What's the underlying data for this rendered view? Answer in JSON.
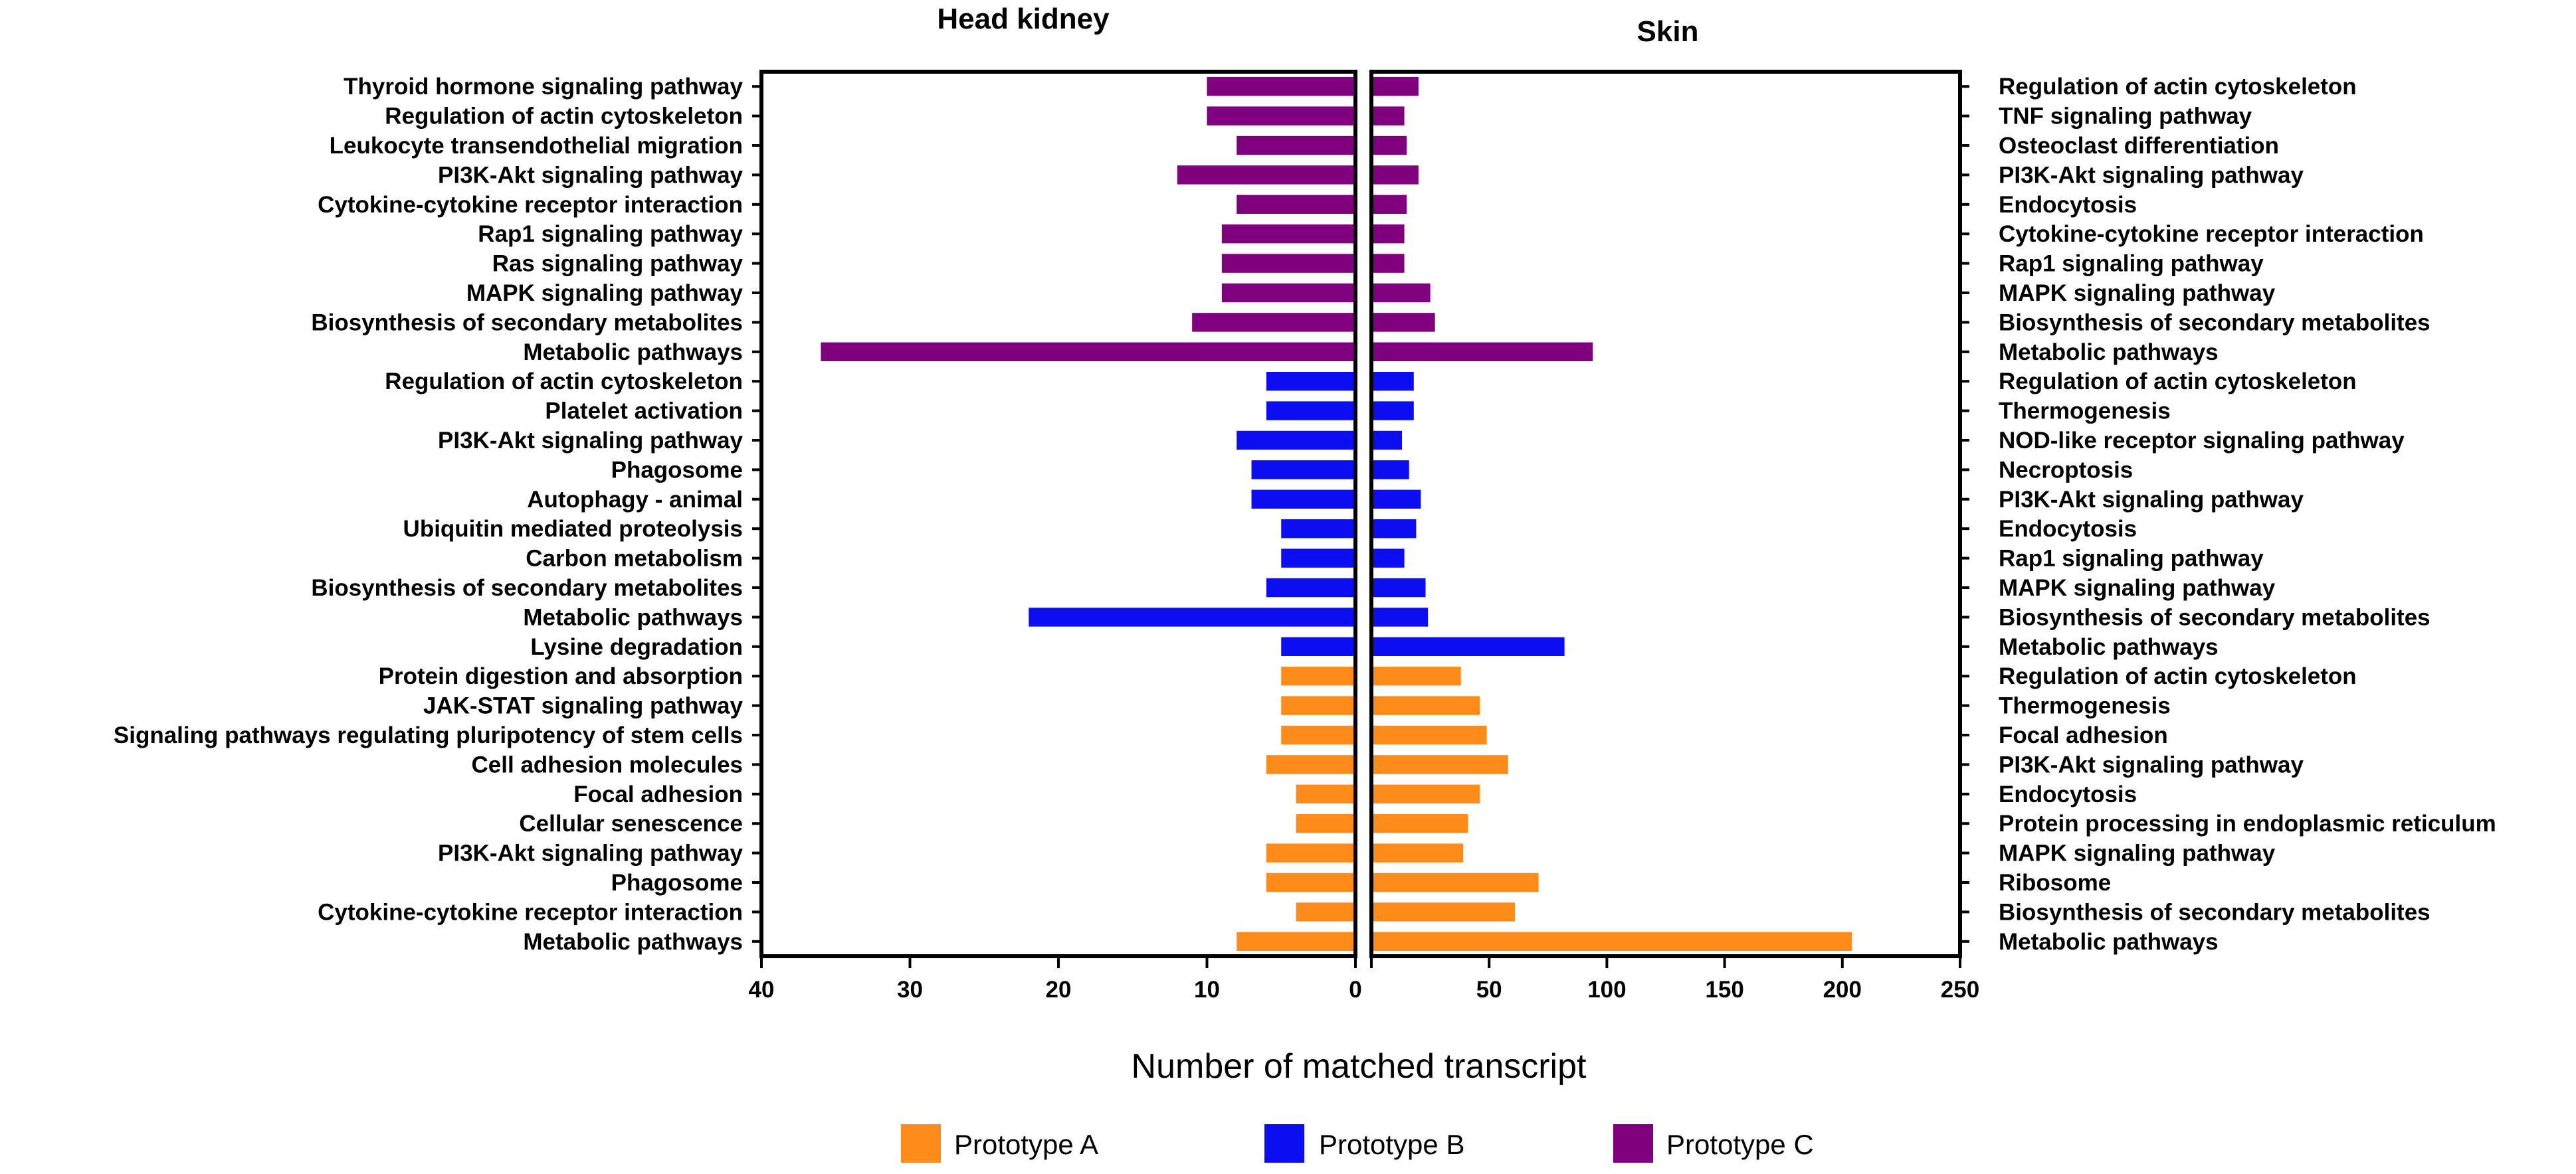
{
  "chart_data": {
    "type": "bar",
    "orientation": "horizontal",
    "xlabel": "Number of matched transcript",
    "colors": {
      "Prototype A": "#FF8C1A",
      "Prototype B": "#0D0DF2",
      "Prototype C": "#800080"
    },
    "legend": [
      {
        "label": "Prototype A",
        "color": "#FF8C1A"
      },
      {
        "label": "Prototype B",
        "color": "#0D0DF2"
      },
      {
        "label": "Prototype C",
        "color": "#800080"
      }
    ],
    "panels": [
      {
        "title": "Head kidney",
        "xlim": [
          40,
          0
        ],
        "ticks": [
          40,
          30,
          20,
          10,
          0
        ],
        "tick_labels": [
          "40",
          "30",
          "20",
          "10",
          "0"
        ],
        "categories": [
          "Thyroid hormone signaling pathway",
          "Regulation of actin cytoskeleton",
          "Leukocyte transendothelial migration",
          "PI3K-Akt signaling pathway",
          "Cytokine-cytokine receptor interaction",
          "Rap1 signaling pathway",
          "Ras signaling pathway",
          "MAPK signaling pathway",
          "Biosynthesis of secondary metabolites",
          "Metabolic pathways",
          "Regulation of actin cytoskeleton",
          "Platelet activation",
          "PI3K-Akt signaling pathway",
          "Phagosome",
          "Autophagy - animal",
          "Ubiquitin mediated proteolysis",
          "Carbon metabolism",
          "Biosynthesis of secondary metabolites",
          "Metabolic pathways",
          "Lysine degradation",
          "Protein digestion and absorption",
          "JAK-STAT signaling pathway",
          "Signaling pathways regulating pluripotency of stem cells",
          "Cell adhesion molecules",
          "Focal adhesion",
          "Cellular senescence",
          "PI3K-Akt signaling pathway",
          "Phagosome",
          "Cytokine-cytokine receptor interaction",
          "Metabolic pathways"
        ],
        "prototypes": [
          "Prototype C",
          "Prototype C",
          "Prototype C",
          "Prototype C",
          "Prototype C",
          "Prototype C",
          "Prototype C",
          "Prototype C",
          "Prototype C",
          "Prototype C",
          "Prototype B",
          "Prototype B",
          "Prototype B",
          "Prototype B",
          "Prototype B",
          "Prototype B",
          "Prototype B",
          "Prototype B",
          "Prototype B",
          "Prototype B",
          "Prototype A",
          "Prototype A",
          "Prototype A",
          "Prototype A",
          "Prototype A",
          "Prototype A",
          "Prototype A",
          "Prototype A",
          "Prototype A",
          "Prototype A"
        ],
        "values": [
          10,
          10,
          8,
          12,
          8,
          9,
          9,
          9,
          11,
          36,
          6,
          6,
          8,
          7,
          7,
          5,
          5,
          6,
          22,
          5,
          5,
          5,
          5,
          6,
          4,
          4,
          6,
          6,
          4,
          8
        ]
      },
      {
        "title": "Skin",
        "xlim": [
          0,
          250
        ],
        "ticks": [
          0,
          50,
          100,
          150,
          200,
          250
        ],
        "tick_labels": [
          "0",
          "50",
          "100",
          "150",
          "200",
          "250"
        ],
        "categories": [
          "Regulation of actin cytoskeleton",
          "TNF signaling pathway",
          "Osteoclast differentiation",
          "PI3K-Akt signaling pathway",
          "Endocytosis",
          "Cytokine-cytokine receptor interaction",
          "Rap1 signaling pathway",
          "MAPK signaling pathway",
          "Biosynthesis of secondary metabolites",
          "Metabolic pathways",
          "Regulation of actin cytoskeleton",
          "Thermogenesis",
          "NOD-like receptor signaling pathway",
          "Necroptosis",
          "PI3K-Akt signaling pathway",
          "Endocytosis",
          "Rap1 signaling pathway",
          "MAPK signaling pathway",
          "Biosynthesis of secondary metabolites",
          "Metabolic pathways",
          "Regulation of actin cytoskeleton",
          "Thermogenesis",
          "Focal adhesion",
          "PI3K-Akt signaling pathway",
          "Endocytosis",
          "Protein processing in endoplasmic reticulum",
          "MAPK signaling pathway",
          "Ribosome",
          "Biosynthesis of secondary metabolites",
          "Metabolic pathways"
        ],
        "prototypes": [
          "Prototype C",
          "Prototype C",
          "Prototype C",
          "Prototype C",
          "Prototype C",
          "Prototype C",
          "Prototype C",
          "Prototype C",
          "Prototype C",
          "Prototype C",
          "Prototype B",
          "Prototype B",
          "Prototype B",
          "Prototype B",
          "Prototype B",
          "Prototype B",
          "Prototype B",
          "Prototype B",
          "Prototype B",
          "Prototype B",
          "Prototype A",
          "Prototype A",
          "Prototype A",
          "Prototype A",
          "Prototype A",
          "Prototype A",
          "Prototype A",
          "Prototype A",
          "Prototype A",
          "Prototype A"
        ],
        "values": [
          20,
          14,
          15,
          20,
          15,
          14,
          14,
          25,
          27,
          94,
          18,
          18,
          13,
          16,
          21,
          19,
          14,
          23,
          24,
          82,
          38,
          46,
          49,
          58,
          46,
          41,
          39,
          71,
          61,
          204
        ]
      }
    ]
  }
}
